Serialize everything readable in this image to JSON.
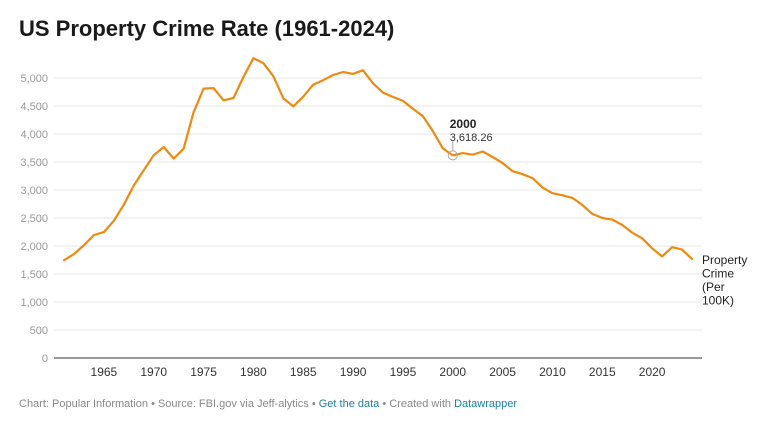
{
  "title": "US Property Crime Rate (1961-2024)",
  "footer": {
    "prefix": "Chart: Popular Information • Source: FBI.gov via Jeff-alytics • ",
    "get_data_link": "Get the data",
    "middle": " • Created with ",
    "datawrapper_link": "Datawrapper"
  },
  "colors": {
    "series": "#f0890f",
    "gridline": "#e6e6e6",
    "baseline": "#333333",
    "link": "#1d81a2"
  },
  "chart_data": {
    "type": "line",
    "title": "US Property Crime Rate (1961-2024)",
    "xlabel": "",
    "ylabel": "",
    "xlim": [
      1961,
      2024
    ],
    "ylim": [
      0,
      5000
    ],
    "yticks": [
      0,
      500,
      1000,
      1500,
      2000,
      2500,
      3000,
      3500,
      4000,
      4500,
      5000
    ],
    "ytick_labels": [
      "0",
      "500",
      "1,000",
      "1,500",
      "2,000",
      "2,500",
      "3,000",
      "3,500",
      "4,000",
      "4,500",
      "5,000"
    ],
    "xticks": [
      1965,
      1970,
      1975,
      1980,
      1985,
      1990,
      1995,
      2000,
      2005,
      2010,
      2015,
      2020
    ],
    "xtick_labels": [
      "1965",
      "1970",
      "1975",
      "1980",
      "1985",
      "1990",
      "1995",
      "2000",
      "2005",
      "2010",
      "2015",
      "2020"
    ],
    "grid": true,
    "series": [
      {
        "name": "Property Crime (Per 100K)",
        "label_lines": [
          "Property",
          "Crime",
          "(Per",
          "100K)"
        ],
        "x": [
          1961,
          1962,
          1963,
          1964,
          1965,
          1966,
          1967,
          1968,
          1969,
          1970,
          1971,
          1972,
          1973,
          1974,
          1975,
          1976,
          1977,
          1978,
          1979,
          1980,
          1981,
          1982,
          1983,
          1984,
          1985,
          1986,
          1987,
          1988,
          1989,
          1990,
          1991,
          1992,
          1993,
          1994,
          1995,
          1996,
          1997,
          1998,
          1999,
          2000,
          2001,
          2002,
          2003,
          2004,
          2005,
          2006,
          2007,
          2008,
          2009,
          2010,
          2011,
          2012,
          2013,
          2014,
          2015,
          2016,
          2017,
          2018,
          2019,
          2020,
          2021,
          2022,
          2023,
          2024
        ],
        "y": [
          1747,
          1858,
          2013,
          2197,
          2249,
          2450,
          2737,
          3080,
          3351,
          3621,
          3768,
          3560,
          3738,
          4390,
          4811,
          4820,
          4602,
          4642,
          5017,
          5353,
          5264,
          5032,
          4638,
          4492,
          4666,
          4882,
          4961,
          5054,
          5107,
          5073,
          5140,
          4904,
          4740,
          4660,
          4591,
          4451,
          4316,
          4053,
          3744,
          3618,
          3659,
          3631,
          3688,
          3590,
          3481,
          3336,
          3283,
          3212,
          3042,
          2942,
          2905,
          2859,
          2734,
          2574,
          2500,
          2472,
          2377,
          2238,
          2137,
          1959,
          1814,
          1979,
          1936,
          1770
        ]
      }
    ],
    "annotations": [
      {
        "x": 2000,
        "y": 3618.26,
        "label": "2000",
        "value_label": "3,618.26"
      }
    ]
  }
}
